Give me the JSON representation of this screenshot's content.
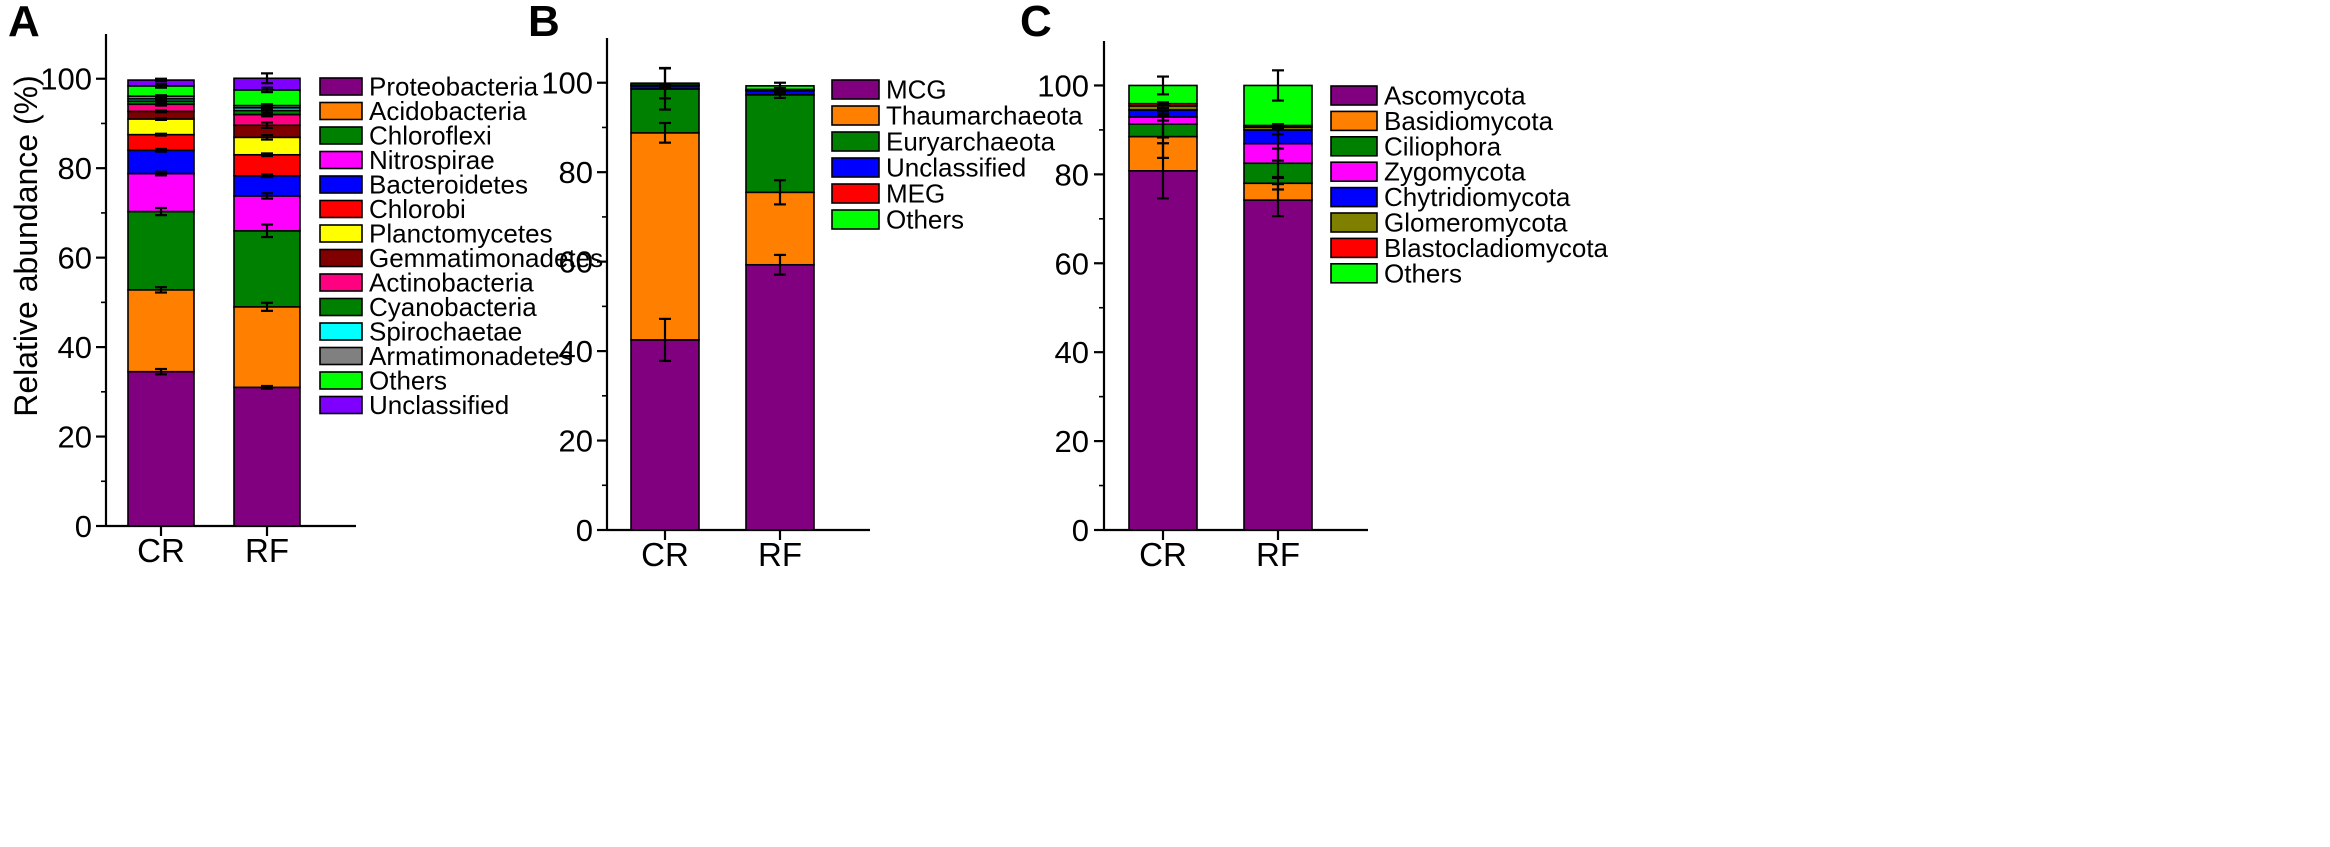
{
  "figure": {
    "y_axis_label": "Relative abundance (%)"
  },
  "chart_data": [
    {
      "panel": "A",
      "type": "stacked-bar",
      "ylabel": "Relative abundance (%)",
      "ylim": [
        0,
        110
      ],
      "yticks": [
        0,
        20,
        40,
        60,
        80,
        100
      ],
      "categories": [
        "CR",
        "RF"
      ],
      "legend": "right",
      "series": [
        {
          "name": "Proteobacteria",
          "color": "#800080",
          "values": [
            34.5,
            31.0
          ],
          "errors": [
            0.6,
            0.3
          ]
        },
        {
          "name": "Acidobacteria",
          "color": "#FF8000",
          "values": [
            18.3,
            18.0
          ],
          "errors": [
            0.6,
            0.9
          ]
        },
        {
          "name": "Chloroflexi",
          "color": "#008000",
          "values": [
            17.5,
            17.0
          ],
          "errors": [
            0.8,
            1.4
          ]
        },
        {
          "name": "Nitrospirae",
          "color": "#FF00FF",
          "values": [
            8.5,
            7.8
          ],
          "errors": [
            0.4,
            0.6
          ]
        },
        {
          "name": "Bacteroidetes",
          "color": "#0000FF",
          "values": [
            5.2,
            4.5
          ],
          "errors": [
            0.3,
            0.3
          ]
        },
        {
          "name": "Chlorobi",
          "color": "#FF0000",
          "values": [
            3.5,
            4.7
          ],
          "errors": [
            0.2,
            0.3
          ]
        },
        {
          "name": "Planctomycetes",
          "color": "#FFFF00",
          "values": [
            3.5,
            3.9
          ],
          "errors": [
            0.2,
            0.5
          ]
        },
        {
          "name": "Gemmatimonadetes",
          "color": "#800000",
          "values": [
            1.7,
            2.7
          ],
          "errors": [
            0.2,
            0.6
          ]
        },
        {
          "name": "Actinobacteria",
          "color": "#FF0080",
          "values": [
            1.6,
            2.4
          ],
          "errors": [
            0.3,
            0.4
          ]
        },
        {
          "name": "Cyanobacteria",
          "color": "#008000",
          "values": [
            0.7,
            0.9
          ],
          "errors": [
            0.8,
            0.5
          ]
        },
        {
          "name": "Spirochaetae",
          "color": "#00FFFF",
          "values": [
            0.5,
            0.6
          ],
          "errors": [
            0.2,
            0.3
          ]
        },
        {
          "name": "Armatimonadetes",
          "color": "#808080",
          "values": [
            0.6,
            0.5
          ],
          "errors": [
            0.2,
            0.3
          ]
        },
        {
          "name": "Others",
          "color": "#00FF00",
          "values": [
            2.3,
            3.5
          ],
          "errors": [
            0.4,
            0.5
          ]
        },
        {
          "name": "Unclassified",
          "color": "#8000FF",
          "values": [
            1.3,
            2.6
          ],
          "errors": [
            0.3,
            1.1
          ]
        }
      ]
    },
    {
      "panel": "B",
      "type": "stacked-bar",
      "ylabel": "",
      "ylim": [
        0,
        110
      ],
      "yticks": [
        0,
        20,
        40,
        60,
        80,
        100
      ],
      "categories": [
        "CR",
        "RF"
      ],
      "legend": "right",
      "series": [
        {
          "name": "MCG",
          "color": "#800080",
          "values": [
            42.5,
            59.3
          ],
          "errors": [
            4.7,
            2.2
          ]
        },
        {
          "name": "Thaumarchaeota",
          "color": "#FF8000",
          "values": [
            46.3,
            16.2
          ],
          "errors": [
            2.2,
            2.7
          ]
        },
        {
          "name": "Euryarchaeota",
          "color": "#008000",
          "values": [
            9.8,
            21.8
          ],
          "errors": [
            4.6,
            0.7
          ]
        },
        {
          "name": "Unclassified",
          "color": "#0000FF",
          "values": [
            0.7,
            0.9
          ],
          "errors": [
            0.5,
            0.6
          ]
        },
        {
          "name": "MEG",
          "color": "#FF0000",
          "values": [
            0.2,
            0.3
          ],
          "errors": [
            0.2,
            0.3
          ]
        },
        {
          "name": "Others",
          "color": "#00FF00",
          "values": [
            0.4,
            0.8
          ],
          "errors": [
            3.4,
            0.7
          ]
        }
      ]
    },
    {
      "panel": "C",
      "type": "stacked-bar",
      "ylabel": "",
      "ylim": [
        0,
        110
      ],
      "yticks": [
        0,
        20,
        40,
        60,
        80,
        100
      ],
      "categories": [
        "CR",
        "RF"
      ],
      "legend": "right",
      "series": [
        {
          "name": "Ascomycota",
          "color": "#800080",
          "values": [
            80.8,
            74.2
          ],
          "errors": [
            6.2,
            3.6
          ]
        },
        {
          "name": "Basidiomycota",
          "color": "#FF8000",
          "values": [
            7.7,
            3.8
          ],
          "errors": [
            4.8,
            1.4
          ]
        },
        {
          "name": "Ciliophora",
          "color": "#008000",
          "values": [
            2.8,
            4.5
          ],
          "errors": [
            3.0,
            3.3
          ]
        },
        {
          "name": "Zygomycota",
          "color": "#FF00FF",
          "values": [
            1.6,
            4.4
          ],
          "errors": [
            0.8,
            3.8
          ]
        },
        {
          "name": "Chytridiomycota",
          "color": "#0000FF",
          "values": [
            1.6,
            3.1
          ],
          "errors": [
            1.2,
            1.0
          ]
        },
        {
          "name": "Glomeromycota",
          "color": "#808000",
          "values": [
            0.9,
            0.6
          ],
          "errors": [
            0.5,
            0.4
          ]
        },
        {
          "name": "Blastocladiomycota",
          "color": "#FF0000",
          "values": [
            0.5,
            0.4
          ],
          "errors": [
            0.3,
            0.3
          ]
        },
        {
          "name": "Others",
          "color": "#00FF00",
          "values": [
            4.1,
            9.0
          ],
          "errors": [
            2.0,
            3.4
          ]
        }
      ]
    }
  ]
}
